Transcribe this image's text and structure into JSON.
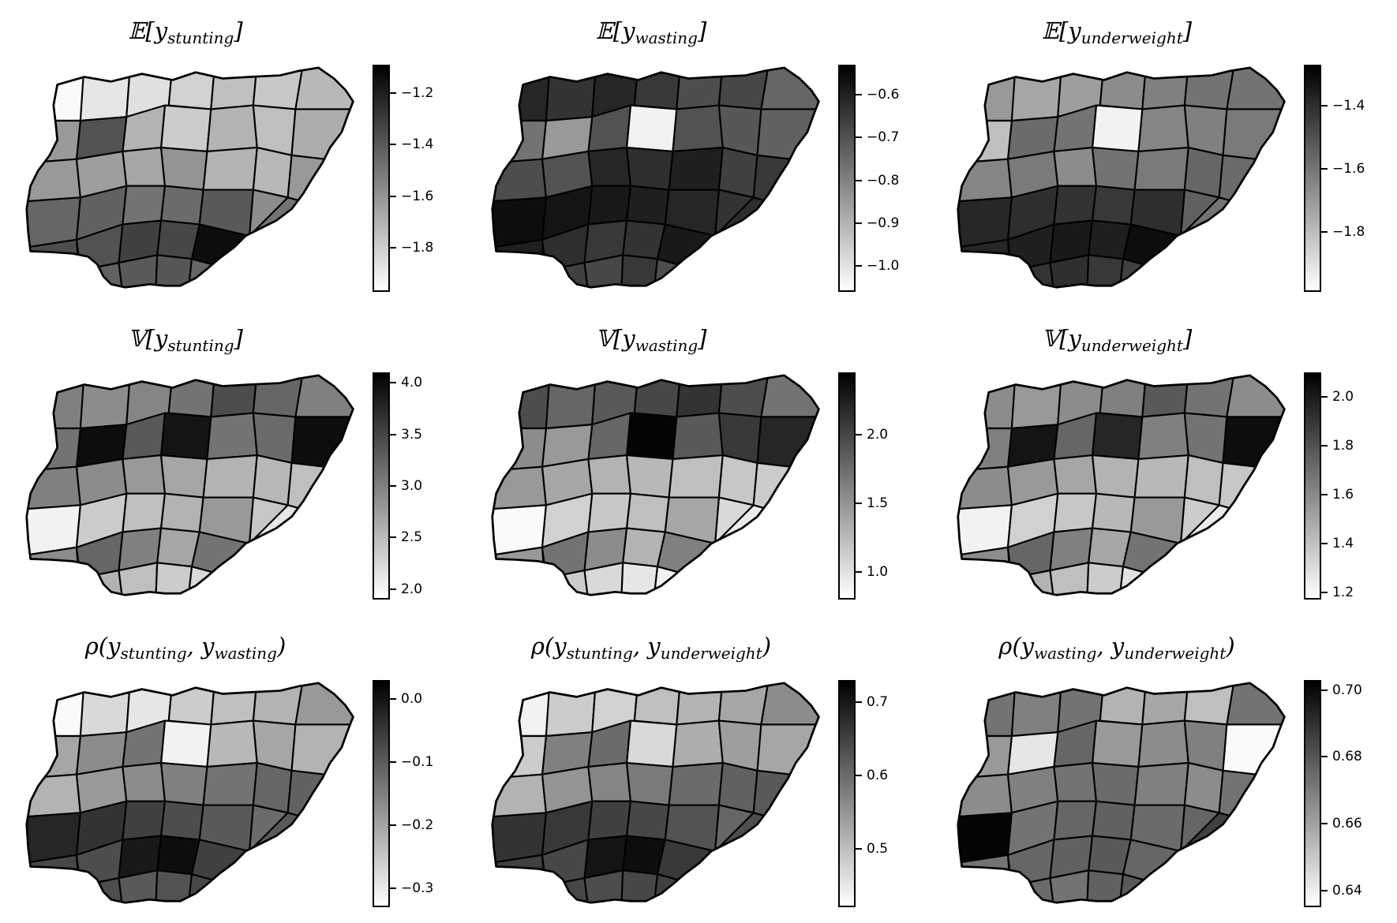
{
  "panels": [
    {
      "title_main": "𝔼[y",
      "title_sub": "stunting",
      "title_tail": "]",
      "colorbar": {
        "min": -1.97,
        "max": -1.09,
        "ticks": [
          {
            "value": -1.2,
            "label": "−1.2"
          },
          {
            "value": -1.4,
            "label": "−1.4"
          },
          {
            "value": -1.6,
            "label": "−1.6"
          },
          {
            "value": -1.8,
            "label": "−1.8"
          }
        ]
      },
      "region_shades": [
        0.02,
        0.1,
        0.12,
        0.18,
        0.25,
        0.2,
        0.22,
        0.3,
        0.25,
        0.28,
        0.32,
        0.3,
        0.68,
        0.4,
        0.4,
        0.38,
        0.35,
        0.42,
        0.3,
        0.28,
        0.4,
        0.45,
        0.6,
        0.62,
        0.55,
        0.58,
        0.65,
        0.7,
        0.68,
        0.75,
        0.72,
        0.95,
        0.62,
        0.65,
        0.66,
        0.6,
        0.55
      ]
    },
    {
      "title_main": "𝔼[y",
      "title_sub": "wasting",
      "title_tail": "]",
      "colorbar": {
        "min": -1.06,
        "max": -0.53,
        "ticks": [
          {
            "value": -0.6,
            "label": "−0.6"
          },
          {
            "value": -0.7,
            "label": "−0.7"
          },
          {
            "value": -0.8,
            "label": "−0.8"
          },
          {
            "value": -0.9,
            "label": "−0.9"
          },
          {
            "value": -1.0,
            "label": "−1.0"
          }
        ]
      },
      "region_shades": [
        0.85,
        0.8,
        0.85,
        0.78,
        0.7,
        0.05,
        0.72,
        0.68,
        0.66,
        0.6,
        0.62,
        0.68,
        0.4,
        0.55,
        0.7,
        0.68,
        0.85,
        0.82,
        0.88,
        0.75,
        0.78,
        0.8,
        0.95,
        0.92,
        0.9,
        0.88,
        0.85,
        0.88,
        0.82,
        0.78,
        0.8,
        0.9,
        0.75,
        0.72,
        0.78,
        0.7,
        0.82
      ]
    },
    {
      "title_main": "𝔼[y",
      "title_sub": "underweight",
      "title_tail": "]",
      "colorbar": {
        "min": -1.99,
        "max": -1.27,
        "ticks": [
          {
            "value": -1.4,
            "label": "−1.4"
          },
          {
            "value": -1.6,
            "label": "−1.6"
          },
          {
            "value": -1.8,
            "label": "−1.8"
          }
        ]
      },
      "region_shades": [
        0.4,
        0.35,
        0.38,
        0.45,
        0.5,
        0.05,
        0.55,
        0.48,
        0.5,
        0.55,
        0.52,
        0.55,
        0.58,
        0.25,
        0.48,
        0.52,
        0.45,
        0.55,
        0.52,
        0.6,
        0.58,
        0.62,
        0.85,
        0.82,
        0.8,
        0.78,
        0.82,
        0.85,
        0.88,
        0.9,
        0.88,
        0.95,
        0.8,
        0.82,
        0.78,
        0.75,
        0.55
      ]
    },
    {
      "title_main": "𝕍[y",
      "title_sub": "stunting",
      "title_tail": "]",
      "colorbar": {
        "min": 1.9,
        "max": 4.1,
        "ticks": [
          {
            "value": 2.0,
            "label": "2.0"
          },
          {
            "value": 2.5,
            "label": "2.5"
          },
          {
            "value": 3.0,
            "label": "3.0"
          },
          {
            "value": 3.5,
            "label": "3.5"
          },
          {
            "value": 4.0,
            "label": "4.0"
          }
        ]
      },
      "region_shades": [
        0.5,
        0.45,
        0.48,
        0.55,
        0.7,
        0.92,
        0.6,
        0.55,
        0.58,
        0.5,
        0.95,
        0.65,
        0.95,
        0.55,
        0.5,
        0.45,
        0.4,
        0.35,
        0.3,
        0.28,
        0.25,
        0.22,
        0.05,
        0.2,
        0.25,
        0.3,
        0.4,
        0.45,
        0.6,
        0.5,
        0.35,
        0.55,
        0.3,
        0.25,
        0.2,
        0.15,
        0.1
      ]
    },
    {
      "title_main": "𝕍[y",
      "title_sub": "wasting",
      "title_tail": "]",
      "colorbar": {
        "min": 0.8,
        "max": 2.45,
        "ticks": [
          {
            "value": 1.0,
            "label": "1.0"
          },
          {
            "value": 1.5,
            "label": "1.5"
          },
          {
            "value": 2.0,
            "label": "2.0"
          }
        ]
      },
      "region_shades": [
        0.7,
        0.6,
        0.65,
        0.72,
        0.8,
        0.98,
        0.7,
        0.65,
        0.78,
        0.55,
        0.85,
        0.6,
        0.4,
        0.45,
        0.4,
        0.35,
        0.3,
        0.28,
        0.25,
        0.22,
        0.2,
        0.15,
        0.02,
        0.18,
        0.22,
        0.25,
        0.35,
        0.4,
        0.55,
        0.45,
        0.3,
        0.5,
        0.2,
        0.15,
        0.1,
        0.05,
        0.08
      ]
    },
    {
      "title_main": "𝕍[y",
      "title_sub": "underweight",
      "title_tail": "]",
      "colorbar": {
        "min": 1.17,
        "max": 2.1,
        "ticks": [
          {
            "value": 1.2,
            "label": "1.2"
          },
          {
            "value": 1.4,
            "label": "1.4"
          },
          {
            "value": 1.6,
            "label": "1.6"
          },
          {
            "value": 1.8,
            "label": "1.8"
          },
          {
            "value": 2.0,
            "label": "2.0"
          }
        ]
      },
      "region_shades": [
        0.45,
        0.4,
        0.45,
        0.5,
        0.65,
        0.85,
        0.55,
        0.5,
        0.55,
        0.45,
        0.95,
        0.6,
        0.92,
        0.5,
        0.45,
        0.4,
        0.35,
        0.3,
        0.28,
        0.25,
        0.22,
        0.2,
        0.05,
        0.18,
        0.22,
        0.28,
        0.4,
        0.45,
        0.6,
        0.5,
        0.35,
        0.55,
        0.3,
        0.25,
        0.2,
        0.12,
        0.08
      ]
    },
    {
      "title_main": "ρ(y",
      "title_sub": "stunting",
      "title_tail": ", y",
      "title_sub2": "wasting",
      "title_end": ")",
      "colorbar": {
        "min": -0.33,
        "max": 0.03,
        "ticks": [
          {
            "value": 0.0,
            "label": "0.0"
          },
          {
            "value": -0.1,
            "label": "−0.1"
          },
          {
            "value": -0.2,
            "label": "−0.2"
          },
          {
            "value": -0.3,
            "label": "−0.3"
          }
        ]
      },
      "region_shades": [
        0.02,
        0.15,
        0.1,
        0.2,
        0.25,
        0.05,
        0.3,
        0.28,
        0.35,
        0.4,
        0.3,
        0.55,
        0.45,
        0.35,
        0.3,
        0.4,
        0.45,
        0.5,
        0.55,
        0.6,
        0.62,
        0.58,
        0.85,
        0.8,
        0.75,
        0.7,
        0.65,
        0.72,
        0.7,
        0.9,
        0.95,
        0.75,
        0.7,
        0.65,
        0.68,
        0.72,
        0.65
      ]
    },
    {
      "title_main": "ρ(y",
      "title_sub": "stunting",
      "title_tail": ", y",
      "title_sub2": "underweight",
      "title_end": ")",
      "colorbar": {
        "min": 0.42,
        "max": 0.73,
        "ticks": [
          {
            "value": 0.7,
            "label": "0.7"
          },
          {
            "value": 0.6,
            "label": "0.6"
          },
          {
            "value": 0.5,
            "label": "0.5"
          }
        ]
      },
      "region_shades": [
        0.05,
        0.2,
        0.18,
        0.25,
        0.3,
        0.15,
        0.35,
        0.32,
        0.38,
        0.45,
        0.35,
        0.58,
        0.5,
        0.2,
        0.3,
        0.42,
        0.48,
        0.52,
        0.58,
        0.62,
        0.65,
        0.6,
        0.8,
        0.78,
        0.75,
        0.72,
        0.68,
        0.75,
        0.72,
        0.92,
        0.95,
        0.78,
        0.72,
        0.7,
        0.72,
        0.75,
        0.7
      ]
    },
    {
      "title_main": "ρ(y",
      "title_sub": "wasting",
      "title_tail": ", y",
      "title_sub2": "underweight",
      "title_end": ")",
      "colorbar": {
        "min": 0.635,
        "max": 0.703,
        "ticks": [
          {
            "value": 0.7,
            "label": "0.70"
          },
          {
            "value": 0.68,
            "label": "0.68"
          },
          {
            "value": 0.66,
            "label": "0.66"
          },
          {
            "value": 0.64,
            "label": "0.64"
          }
        ]
      },
      "region_shades": [
        0.55,
        0.5,
        0.55,
        0.3,
        0.35,
        0.4,
        0.25,
        0.45,
        0.5,
        0.55,
        0.02,
        0.6,
        0.1,
        0.4,
        0.45,
        0.5,
        0.55,
        0.58,
        0.5,
        0.45,
        0.55,
        0.6,
        0.98,
        0.55,
        0.6,
        0.62,
        0.58,
        0.55,
        0.6,
        0.62,
        0.65,
        0.6,
        0.58,
        0.55,
        0.62,
        0.65,
        0.75
      ]
    }
  ]
}
